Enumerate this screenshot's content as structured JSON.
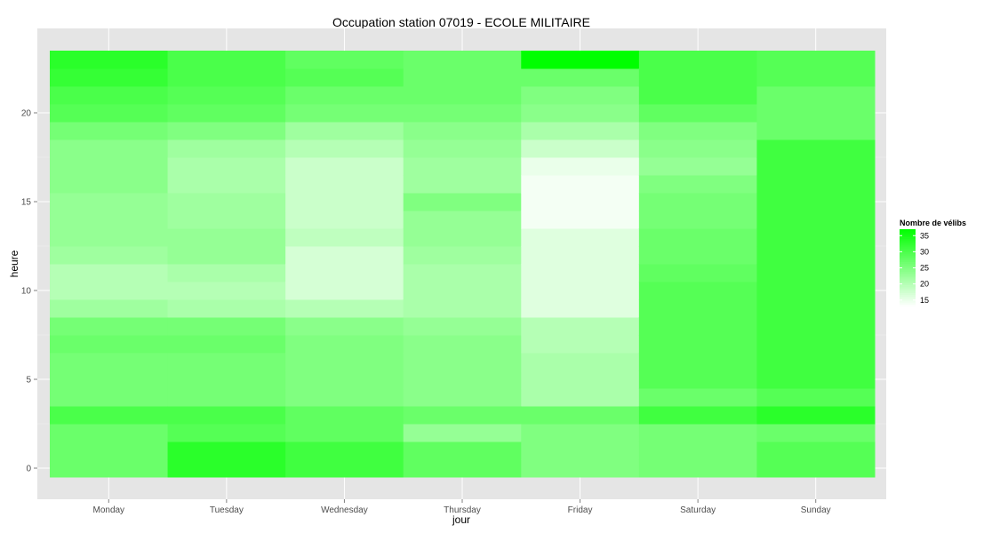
{
  "chart_data": {
    "type": "heatmap",
    "title": "Occupation station 07019 - ECOLE MILITAIRE",
    "xlabel": "jour",
    "ylabel": "heure",
    "x_categories": [
      "Monday",
      "Tuesday",
      "Wednesday",
      "Thursday",
      "Friday",
      "Saturday",
      "Sunday"
    ],
    "y_range": [
      -0.5,
      23.5
    ],
    "y_ticks": [
      0,
      5,
      10,
      15,
      20
    ],
    "grid": true,
    "panel_background": "#e5e5e5",
    "legend": {
      "title": "Nombre de vélibs",
      "position": "right",
      "ticks": [
        15,
        20,
        25,
        30,
        35
      ],
      "low_color": "#ffffff",
      "high_color": "#00ff00",
      "min": 13,
      "max": 37
    },
    "hours": [
      0,
      1,
      2,
      3,
      4,
      5,
      6,
      7,
      8,
      9,
      10,
      11,
      12,
      13,
      14,
      15,
      16,
      17,
      18,
      19,
      20,
      21,
      22,
      23
    ],
    "values": {
      "Monday": [
        27,
        27,
        27,
        30,
        26,
        26,
        26,
        27,
        26,
        22,
        20,
        20,
        22,
        23,
        23,
        23,
        24,
        24,
        24,
        26,
        29,
        30,
        32,
        33
      ],
      "Tuesday": [
        33,
        33,
        29,
        30,
        26,
        26,
        26,
        27,
        26,
        21,
        20,
        21,
        23,
        23,
        22,
        22,
        21,
        21,
        22,
        25,
        28,
        29,
        30,
        30
      ],
      "Wednesday": [
        31,
        31,
        28,
        28,
        25,
        25,
        25,
        25,
        24,
        20,
        17,
        17,
        17,
        19,
        18,
        18,
        18,
        18,
        20,
        22,
        26,
        27,
        29,
        28
      ],
      "Thursday": [
        28,
        28,
        23,
        27,
        24,
        24,
        24,
        24,
        23,
        21,
        21,
        21,
        22,
        23,
        23,
        25,
        22,
        22,
        23,
        24,
        26,
        27,
        27,
        27
      ],
      "Friday": [
        25,
        25,
        25,
        27,
        21,
        21,
        21,
        20,
        20,
        16,
        16,
        16,
        16,
        16,
        14,
        14,
        14,
        15,
        18,
        21,
        24,
        25,
        27,
        37
      ],
      "Saturday": [
        26,
        26,
        26,
        31,
        27,
        29,
        29,
        29,
        29,
        29,
        29,
        28,
        27,
        27,
        26,
        26,
        25,
        23,
        24,
        25,
        28,
        30,
        30,
        30
      ],
      "Sunday": [
        29,
        29,
        27,
        33,
        29,
        31,
        31,
        31,
        31,
        31,
        31,
        31,
        31,
        31,
        31,
        31,
        31,
        31,
        31,
        27,
        27,
        27,
        29,
        29
      ]
    }
  }
}
